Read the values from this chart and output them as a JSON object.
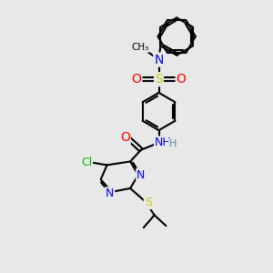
{
  "bg_color": "#e8e8e8",
  "bond_color": "#000000",
  "atom_colors": {
    "N": "#0000ff",
    "O": "#ff0000",
    "S": "#cccc00",
    "Cl": "#00bb00",
    "C": "#000000",
    "H": "#5588aa"
  },
  "figsize": [
    3.0,
    3.0
  ],
  "dpi": 100
}
